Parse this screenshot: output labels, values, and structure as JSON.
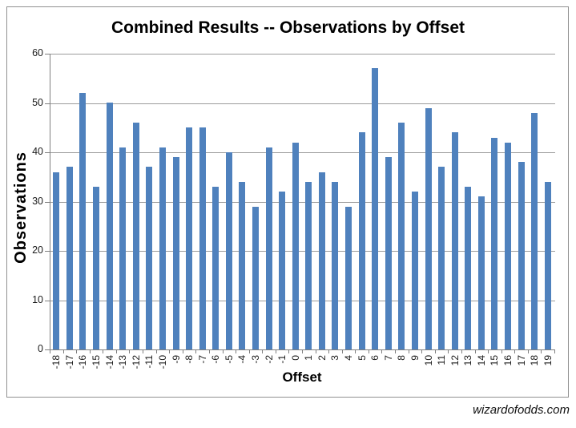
{
  "watermark": "wizardofodds.com",
  "chart_data": {
    "type": "bar",
    "title": "Combined Results -- Observations by Offset",
    "xlabel": "Offset",
    "ylabel": "Observations",
    "categories": [
      "-18",
      "-17",
      "-16",
      "-15",
      "-14",
      "-13",
      "-12",
      "-11",
      "-10",
      "-9",
      "-8",
      "-7",
      "-6",
      "-5",
      "-4",
      "-3",
      "-2",
      "-1",
      "0",
      "1",
      "2",
      "3",
      "4",
      "5",
      "6",
      "7",
      "8",
      "9",
      "10",
      "11",
      "12",
      "13",
      "14",
      "15",
      "16",
      "17",
      "18",
      "19"
    ],
    "values": [
      36,
      37,
      52,
      33,
      50,
      41,
      46,
      37,
      41,
      39,
      45,
      45,
      33,
      40,
      34,
      29,
      41,
      32,
      42,
      34,
      36,
      34,
      29,
      44,
      57,
      39,
      46,
      32,
      49,
      37,
      44,
      33,
      31,
      43,
      42,
      38,
      48,
      34
    ],
    "ylim": [
      0,
      60
    ],
    "yticks": [
      0,
      10,
      20,
      30,
      40,
      50,
      60
    ],
    "grid": true,
    "legend_position": "none",
    "bar_color": "#4F81BD",
    "gridline_color": "#9B9B9B",
    "axis_color": "#7F7F7F",
    "frame_border_color": "#919191",
    "background_color": "#FFFFFF"
  }
}
